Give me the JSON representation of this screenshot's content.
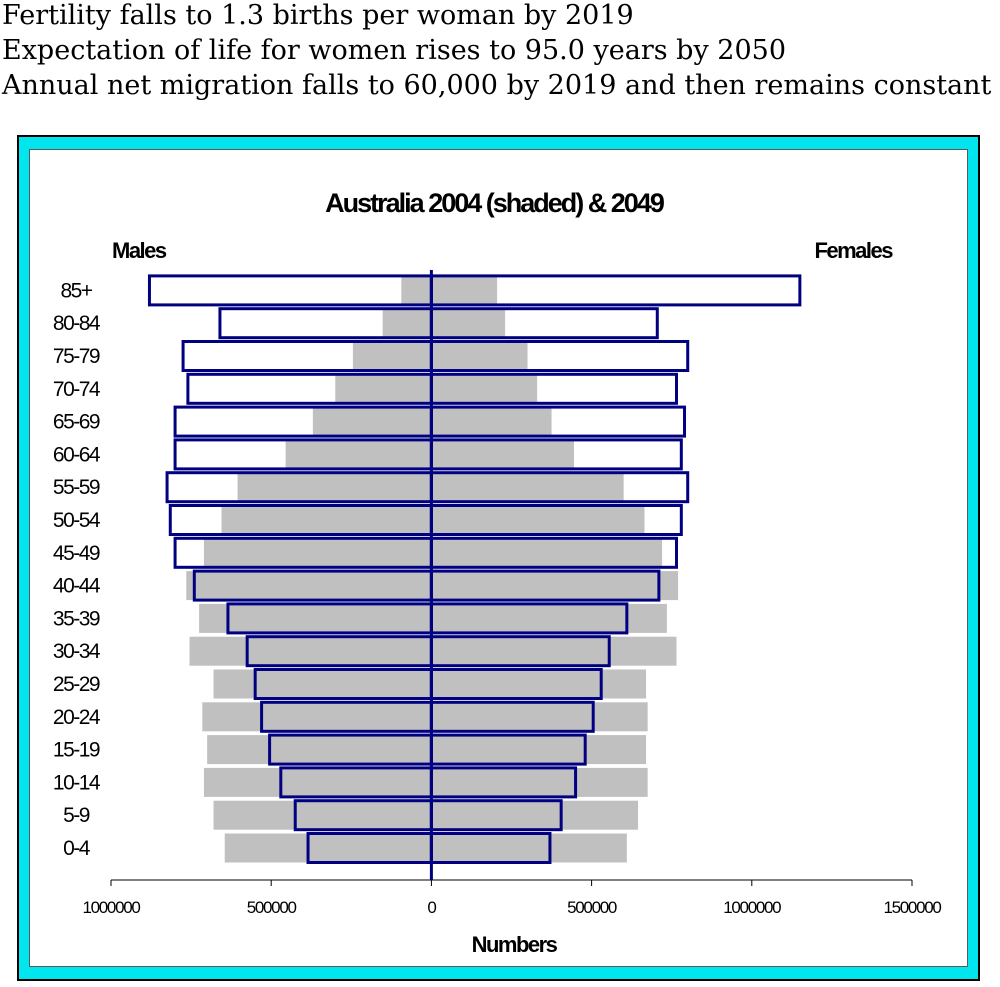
{
  "headlines": [
    "Fertility falls to 1.3 births per woman by 2019",
    "Expectation of life for women rises to 95.0 years by 2050",
    "Annual net migration falls to 60,000 by 2019 and then remains constant"
  ],
  "colors": {
    "frame": "#00e5ee",
    "shaded_2004": "#c0c0c0",
    "outline_2049": "#000080"
  },
  "chart_data": {
    "type": "bar",
    "orientation": "horizontal-population-pyramid",
    "title": "Australia 2004 (shaded) & 2049",
    "xlabel": "Numbers",
    "left_label": "Males",
    "right_label": "Females",
    "x_ticks": [
      "1000000",
      "500000",
      "0",
      "500000",
      "1000000",
      "1500000"
    ],
    "xlim": [
      -1000000,
      1500000
    ],
    "categories": [
      "85+",
      "80-84",
      "75-79",
      "70-74",
      "65-69",
      "60-64",
      "55-59",
      "50-54",
      "45-49",
      "40-44",
      "35-39",
      "30-34",
      "25-29",
      "20-24",
      "15-19",
      "10-14",
      "5-9",
      "0-4"
    ],
    "series": [
      {
        "name": "2004 (shaded)",
        "style": "shaded",
        "males": [
          94000,
          152000,
          245000,
          300000,
          370000,
          455000,
          605000,
          655000,
          710000,
          765000,
          725000,
          755000,
          680000,
          715000,
          700000,
          710000,
          680000,
          645000
        ],
        "females": [
          205000,
          230000,
          300000,
          330000,
          375000,
          445000,
          600000,
          665000,
          720000,
          770000,
          735000,
          765000,
          670000,
          675000,
          670000,
          675000,
          645000,
          610000
        ]
      },
      {
        "name": "2049",
        "style": "outline",
        "males": [
          880000,
          660000,
          775000,
          760000,
          800000,
          800000,
          825000,
          815000,
          800000,
          740000,
          635000,
          575000,
          550000,
          530000,
          505000,
          470000,
          425000,
          385000
        ],
        "females": [
          1150000,
          705000,
          800000,
          765000,
          790000,
          780000,
          800000,
          780000,
          765000,
          710000,
          610000,
          555000,
          530000,
          505000,
          480000,
          450000,
          405000,
          370000
        ]
      }
    ],
    "grid": false,
    "legend": "none"
  }
}
